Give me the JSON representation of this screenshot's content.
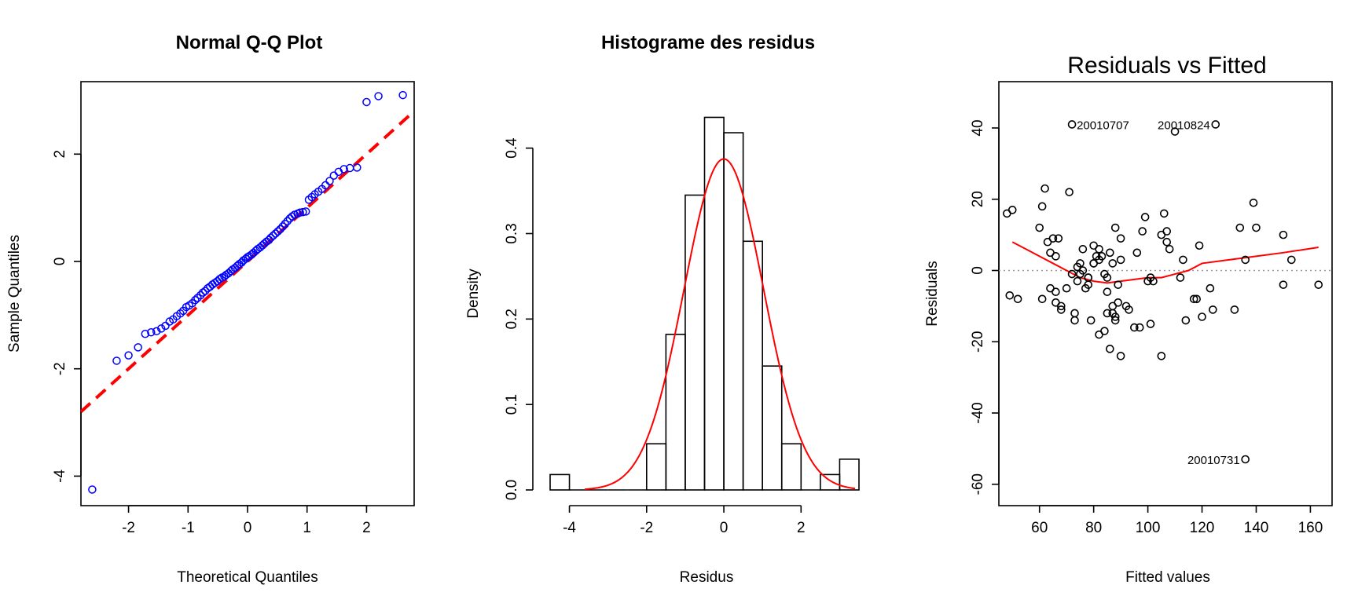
{
  "chart_data": [
    {
      "type": "scatter",
      "title": "Normal Q-Q Plot",
      "xlabel": "Theoretical Quantiles",
      "ylabel": "Sample Quantiles",
      "xlim": [
        -2.8,
        2.8
      ],
      "ylim": [
        -4.55,
        3.35
      ],
      "xticks": [
        -2,
        -1,
        0,
        1,
        2
      ],
      "yticks": [
        -4,
        -2,
        0,
        2
      ],
      "point_color": "#0000ff",
      "reference_line": {
        "color": "#ff0000",
        "style": "dashed",
        "intercept": 0.0,
        "slope": 1.0
      },
      "series": [
        {
          "x": [
            -2.61,
            -2.2,
            -2.0,
            -1.84,
            -1.72,
            -1.62,
            -1.53,
            -1.45,
            -1.38,
            -1.31,
            -1.25,
            -1.19,
            -1.13,
            -1.08,
            -1.03,
            -0.98,
            -0.93,
            -0.88,
            -0.84,
            -0.79,
            -0.75,
            -0.71,
            -0.67,
            -0.63,
            -0.59,
            -0.55,
            -0.51,
            -0.47,
            -0.43,
            -0.39,
            -0.36,
            -0.32,
            -0.28,
            -0.25,
            -0.21,
            -0.17,
            -0.14,
            -0.1,
            -0.07,
            -0.03,
            0.0,
            0.03,
            0.07,
            0.1,
            0.14,
            0.17,
            0.21,
            0.25,
            0.28,
            0.32,
            0.36,
            0.39,
            0.43,
            0.47,
            0.51,
            0.55,
            0.59,
            0.63,
            0.67,
            0.71,
            0.75,
            0.79,
            0.84,
            0.88,
            0.93,
            0.98,
            1.03,
            1.08,
            1.13,
            1.19,
            1.25,
            1.31,
            1.38,
            1.45,
            1.53,
            1.62,
            1.72,
            1.84,
            2.0,
            2.2,
            2.61
          ],
          "y": [
            -4.25,
            -1.85,
            -1.75,
            -1.6,
            -1.35,
            -1.32,
            -1.3,
            -1.25,
            -1.2,
            -1.12,
            -1.08,
            -1.02,
            -0.97,
            -0.92,
            -0.85,
            -0.82,
            -0.78,
            -0.72,
            -0.68,
            -0.63,
            -0.58,
            -0.55,
            -0.5,
            -0.47,
            -0.43,
            -0.4,
            -0.37,
            -0.33,
            -0.3,
            -0.28,
            -0.25,
            -0.22,
            -0.18,
            -0.15,
            -0.12,
            -0.08,
            -0.05,
            -0.02,
            0.02,
            0.05,
            0.08,
            0.1,
            0.13,
            0.16,
            0.2,
            0.23,
            0.26,
            0.3,
            0.33,
            0.37,
            0.4,
            0.44,
            0.48,
            0.52,
            0.56,
            0.6,
            0.65,
            0.7,
            0.75,
            0.8,
            0.84,
            0.87,
            0.89,
            0.91,
            0.92,
            0.93,
            1.15,
            1.2,
            1.25,
            1.3,
            1.35,
            1.42,
            1.5,
            1.6,
            1.67,
            1.72,
            1.74,
            1.75,
            2.97,
            3.08,
            3.1
          ]
        }
      ]
    },
    {
      "type": "bar",
      "title": "Histograme des residus",
      "xlabel": "Residus",
      "ylabel": "Density",
      "xlim": [
        -4.5,
        3.5
      ],
      "ylim": [
        0,
        0.45
      ],
      "xticks": [
        -4,
        -2,
        0,
        2
      ],
      "yticks": [
        0.0,
        0.1,
        0.2,
        0.3,
        0.4
      ],
      "bins": [
        {
          "x0": -4.5,
          "x1": -4.0,
          "value": 0.018
        },
        {
          "x0": -4.0,
          "x1": -3.5,
          "value": 0.0
        },
        {
          "x0": -3.5,
          "x1": -3.0,
          "value": 0.0
        },
        {
          "x0": -3.0,
          "x1": -2.5,
          "value": 0.0
        },
        {
          "x0": -2.5,
          "x1": -2.0,
          "value": 0.0
        },
        {
          "x0": -2.0,
          "x1": -1.5,
          "value": 0.054
        },
        {
          "x0": -1.5,
          "x1": -1.0,
          "value": 0.182
        },
        {
          "x0": -1.0,
          "x1": -0.5,
          "value": 0.345
        },
        {
          "x0": -0.5,
          "x1": 0.0,
          "value": 0.436
        },
        {
          "x0": 0.0,
          "x1": 0.5,
          "value": 0.418
        },
        {
          "x0": 0.5,
          "x1": 1.0,
          "value": 0.291
        },
        {
          "x0": 1.0,
          "x1": 1.5,
          "value": 0.145
        },
        {
          "x0": 1.5,
          "x1": 2.0,
          "value": 0.054
        },
        {
          "x0": 2.0,
          "x1": 2.5,
          "value": 0.0
        },
        {
          "x0": 2.5,
          "x1": 3.0,
          "value": 0.018
        },
        {
          "x0": 3.0,
          "x1": 3.5,
          "value": 0.036
        }
      ],
      "density_curve": {
        "color": "#ff0000",
        "mean": 0.0,
        "sd": 1.03
      }
    },
    {
      "type": "scatter",
      "title": "Residuals vs Fitted",
      "xlabel": "Fitted values",
      "ylabel": "Residuals",
      "xlim": [
        45,
        168
      ],
      "ylim": [
        -66,
        53
      ],
      "xticks": [
        60,
        80,
        100,
        120,
        140,
        160
      ],
      "yticks": [
        -60,
        -40,
        -20,
        0,
        20,
        40
      ],
      "point_color": "#000000",
      "zero_line": {
        "value": 0,
        "color": "#999999",
        "style": "dotted"
      },
      "smoother": {
        "color": "#ff0000",
        "x": [
          50,
          55,
          60,
          65,
          70,
          75,
          80,
          85,
          90,
          95,
          100,
          105,
          110,
          115,
          120,
          130,
          140,
          150,
          163
        ],
        "y": [
          8,
          6,
          4,
          2,
          0,
          -2,
          -3,
          -3.5,
          -3,
          -2.5,
          -2,
          -2,
          -1,
          0,
          2,
          3,
          4,
          5,
          6.5
        ]
      },
      "annotations": [
        {
          "label": "20010707",
          "x": 72,
          "y": 41
        },
        {
          "label": "20010824",
          "x": 125,
          "y": 41
        },
        {
          "label": "20010731",
          "x": 136,
          "y": -53
        }
      ],
      "series": [
        {
          "x": [
            72,
            125,
            110,
            136,
            48,
            50,
            52,
            49,
            60,
            61,
            71,
            64,
            65,
            66,
            67,
            68,
            74,
            75,
            76,
            78,
            80,
            81,
            82,
            83,
            84,
            85,
            86,
            87,
            88,
            89,
            90,
            98,
            99,
            105,
            106,
            107,
            108,
            118,
            124,
            134,
            136,
            139,
            140,
            150,
            153,
            62,
            63,
            64,
            66,
            70,
            72,
            73,
            74,
            76,
            77,
            78,
            79,
            80,
            82,
            84,
            85,
            86,
            87,
            88,
            89,
            90,
            92,
            95,
            97,
            100,
            101,
            102,
            105,
            113,
            114,
            117,
            120,
            123,
            132,
            150,
            163,
            75,
            78,
            80,
            82,
            85,
            87,
            88,
            90,
            93,
            96,
            101,
            107,
            112,
            119,
            61,
            66,
            68,
            73
          ],
          "y": [
            41,
            41,
            39,
            -53,
            16,
            17,
            -8,
            -7,
            12,
            18,
            22,
            5,
            9,
            4,
            9,
            -11,
            1,
            2,
            0,
            -4,
            2,
            4,
            6,
            4,
            -1,
            -2,
            5,
            2,
            12,
            -9,
            3,
            11,
            15,
            10,
            16,
            8,
            6,
            -8,
            -11,
            12,
            3,
            19,
            12,
            10,
            3,
            23,
            8,
            -5,
            -6,
            -5,
            -1,
            -12,
            -3,
            6,
            -5,
            -2,
            -14,
            7,
            -18,
            -17,
            -6,
            -22,
            -12,
            -13,
            -4,
            9,
            -10,
            -16,
            -16,
            -3,
            -2,
            -3,
            -24,
            3,
            -14,
            -8,
            -13,
            -5,
            -11,
            -4,
            -4,
            -1,
            -2,
            2,
            3,
            -12,
            -10,
            -14,
            -24,
            -11,
            5,
            -15,
            11,
            -2,
            7,
            -8,
            -9,
            -10,
            -14
          ]
        }
      ]
    }
  ]
}
